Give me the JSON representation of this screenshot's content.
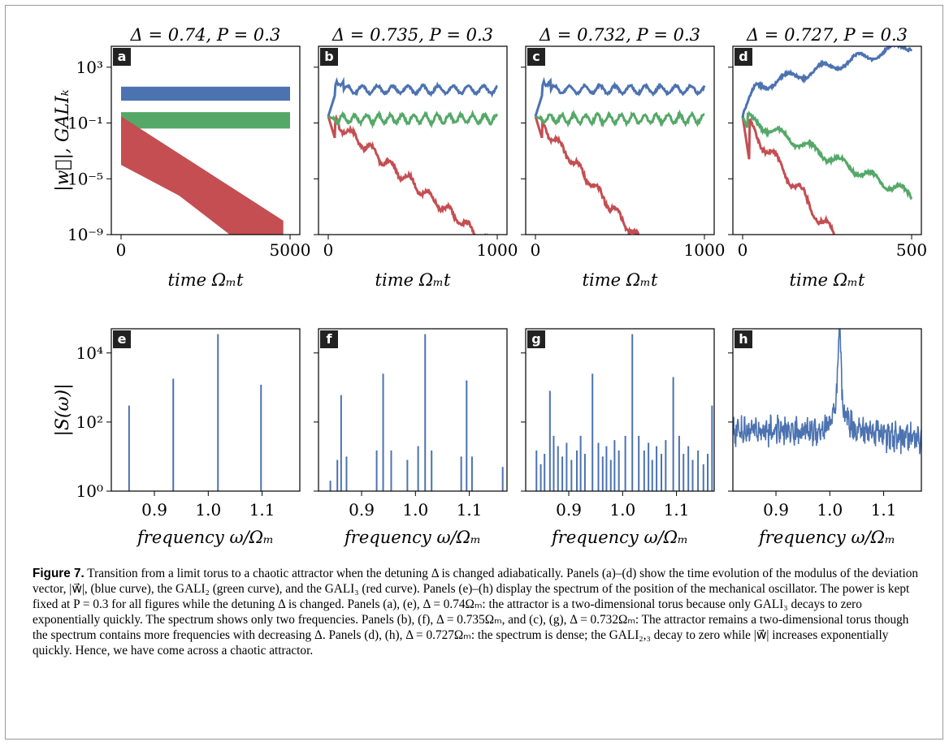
{
  "figure": {
    "panels_top": [
      {
        "letter": "a",
        "title": "Δ = 0.74,  P = 0.3",
        "xmax": 5000,
        "xticks": [
          "0",
          "5000"
        ]
      },
      {
        "letter": "b",
        "title": "Δ = 0.735,  P = 0.3",
        "xmax": 1000,
        "xticks": [
          "0",
          "1000"
        ]
      },
      {
        "letter": "c",
        "title": "Δ = 0.732,  P = 0.3",
        "xmax": 1000,
        "xticks": [
          "0",
          "1000"
        ]
      },
      {
        "letter": "d",
        "title": "Δ = 0.727,  P = 0.3",
        "xmax": 500,
        "xticks": [
          "0",
          "500"
        ]
      }
    ],
    "panels_bottom": [
      {
        "letter": "e"
      },
      {
        "letter": "f"
      },
      {
        "letter": "g"
      },
      {
        "letter": "h"
      }
    ],
    "top_ylabel": "|w⃗|, GALIₖ",
    "top_xlabel": "time Ωₘt",
    "top_yticks": [
      "10³",
      "10⁻¹",
      "10⁻⁵",
      "10⁻⁹"
    ],
    "bottom_ylabel": "|S(ω)|",
    "bottom_xlabel": "frequency ω/Ωₘ",
    "bottom_yticks": [
      "10⁴",
      "10²",
      "10⁰"
    ],
    "bottom_xticks": [
      "0.9",
      "1.0",
      "1.1"
    ]
  },
  "chart_data": [
    {
      "type": "line",
      "panel": "a",
      "title": "Δ = 0.74,  P = 0.3",
      "xlabel": "time Ωₘt",
      "ylabel": "|w⃗|, GALIₖ",
      "y_scale": "log",
      "xlim": [
        0,
        5000
      ],
      "ylim": [
        1e-09,
        10000.0
      ],
      "series": [
        {
          "color": "#4c72b0",
          "band": [
            4,
            40
          ]
        },
        {
          "color": "#55a868",
          "band": [
            0.04,
            0.6
          ]
        },
        {
          "color": "#c44e52",
          "decay_from": 0.3,
          "decay_to": 1e-09,
          "at_x": 4800
        }
      ]
    },
    {
      "type": "line",
      "panel": "b",
      "title": "Δ = 0.735,  P = 0.3",
      "xlabel": "time Ωₘt",
      "y_scale": "log",
      "xlim": [
        0,
        1000
      ],
      "ylim": [
        1e-09,
        10000.0
      ],
      "series": [
        {
          "color": "#4c72b0",
          "level": 25
        },
        {
          "color": "#55a868",
          "level": 0.2
        },
        {
          "color": "#c44e52",
          "decay_from": 0.3,
          "decay_to": 1e-09,
          "at_x": 980
        }
      ]
    },
    {
      "type": "line",
      "panel": "c",
      "title": "Δ = 0.732,  P = 0.3",
      "xlabel": "time Ωₘt",
      "y_scale": "log",
      "xlim": [
        0,
        1000
      ],
      "ylim": [
        1e-09,
        10000.0
      ],
      "series": [
        {
          "color": "#4c72b0",
          "level": 25
        },
        {
          "color": "#55a868",
          "level": 0.2
        },
        {
          "color": "#c44e52",
          "decay_from": 0.3,
          "decay_to": 1e-09,
          "at_x": 680
        }
      ]
    },
    {
      "type": "line",
      "panel": "d",
      "title": "Δ = 0.727,  P = 0.3",
      "xlabel": "time Ωₘt",
      "y_scale": "log",
      "xlim": [
        0,
        500
      ],
      "ylim": [
        1e-09,
        10000.0
      ],
      "series": [
        {
          "color": "#4c72b0",
          "growth_from": 0.3,
          "growth_to": 5000
        },
        {
          "color": "#55a868",
          "decay_from": 0.3,
          "decay_to": 1e-05
        },
        {
          "color": "#c44e52",
          "decay_from": 0.3,
          "decay_to": 1e-09,
          "at_x": 280
        }
      ]
    },
    {
      "type": "bar",
      "panel": "e",
      "xlabel": "frequency ω/Ωₘ",
      "ylabel": "|S(ω)|",
      "y_scale": "log",
      "xlim": [
        0.82,
        1.17
      ],
      "ylim": [
        1,
        50000
      ],
      "peaks": [
        [
          0.853,
          300
        ],
        [
          0.935,
          1800
        ],
        [
          1.018,
          35000
        ],
        [
          1.098,
          1200
        ]
      ]
    },
    {
      "type": "bar",
      "panel": "f",
      "xlabel": "frequency ω/Ωₘ",
      "y_scale": "log",
      "xlim": [
        0.82,
        1.17
      ],
      "ylim": [
        1,
        50000
      ],
      "peaks": [
        [
          0.842,
          2
        ],
        [
          0.855,
          8
        ],
        [
          0.862,
          600
        ],
        [
          0.872,
          10
        ],
        [
          0.928,
          15
        ],
        [
          0.94,
          2500
        ],
        [
          0.955,
          15
        ],
        [
          0.985,
          8
        ],
        [
          1.005,
          20
        ],
        [
          1.018,
          35000
        ],
        [
          1.03,
          15
        ],
        [
          1.085,
          10
        ],
        [
          1.095,
          1600
        ],
        [
          1.105,
          10
        ],
        [
          1.162,
          5
        ]
      ]
    },
    {
      "type": "bar",
      "panel": "g",
      "xlabel": "frequency ω/Ωₘ",
      "y_scale": "log",
      "xlim": [
        0.82,
        1.17
      ],
      "ylim": [
        1,
        50000
      ],
      "peaks": [
        [
          0.84,
          15
        ],
        [
          0.848,
          6
        ],
        [
          0.855,
          12
        ],
        [
          0.865,
          800
        ],
        [
          0.872,
          40
        ],
        [
          0.88,
          20
        ],
        [
          0.888,
          10
        ],
        [
          0.896,
          25
        ],
        [
          0.905,
          8
        ],
        [
          0.915,
          15
        ],
        [
          0.922,
          40
        ],
        [
          0.93,
          12
        ],
        [
          0.944,
          2500
        ],
        [
          0.955,
          25
        ],
        [
          0.963,
          10
        ],
        [
          0.97,
          20
        ],
        [
          0.978,
          8
        ],
        [
          0.985,
          30
        ],
        [
          0.993,
          15
        ],
        [
          1.005,
          40
        ],
        [
          1.018,
          35000
        ],
        [
          1.03,
          40
        ],
        [
          1.04,
          15
        ],
        [
          1.048,
          25
        ],
        [
          1.055,
          8
        ],
        [
          1.063,
          20
        ],
        [
          1.072,
          12
        ],
        [
          1.08,
          30
        ],
        [
          1.094,
          2000
        ],
        [
          1.105,
          40
        ],
        [
          1.113,
          12
        ],
        [
          1.122,
          20
        ],
        [
          1.13,
          8
        ],
        [
          1.14,
          15
        ],
        [
          1.15,
          6
        ],
        [
          1.158,
          12
        ],
        [
          1.166,
          300
        ]
      ]
    },
    {
      "type": "line",
      "panel": "h",
      "xlabel": "frequency ω/Ωₘ",
      "y_scale": "log",
      "xlim": [
        0.82,
        1.17
      ],
      "ylim": [
        1,
        50000
      ],
      "note": "dense broadband spectrum with peak at 1.018 (~25000)"
    }
  ],
  "caption": {
    "label": "Figure 7.",
    "text": " Transition from a limit torus to a chaotic attractor when the detuning Δ is changed adiabatically. Panels (a)–(d) show the time evolution of the modulus of the deviation vector, |w⃗|, (blue curve), the GALI₂ (green curve), and the GALI₃ (red curve). Panels (e)–(h) display the spectrum of the position of the mechanical oscillator. The power is kept fixed at P = 0.3 for all figures while the detuning Δ is changed. Panels (a), (e), Δ = 0.74Ωₘ: the attractor is a two-dimensional torus because only GALI₃ decays to zero exponentially quickly. The spectrum shows only two frequencies. Panels (b), (f), Δ = 0.735Ωₘ, and (c), (g), Δ = 0.732Ωₘ: The attractor remains a two-dimensional torus though the spectrum contains more frequencies with decreasing Δ. Panels (d), (h), Δ = 0.727Ωₘ: the spectrum is dense; the GALI₂,₃ decay to zero while |w⃗| increases exponentially quickly. Hence, we have come across a chaotic attractor."
  }
}
